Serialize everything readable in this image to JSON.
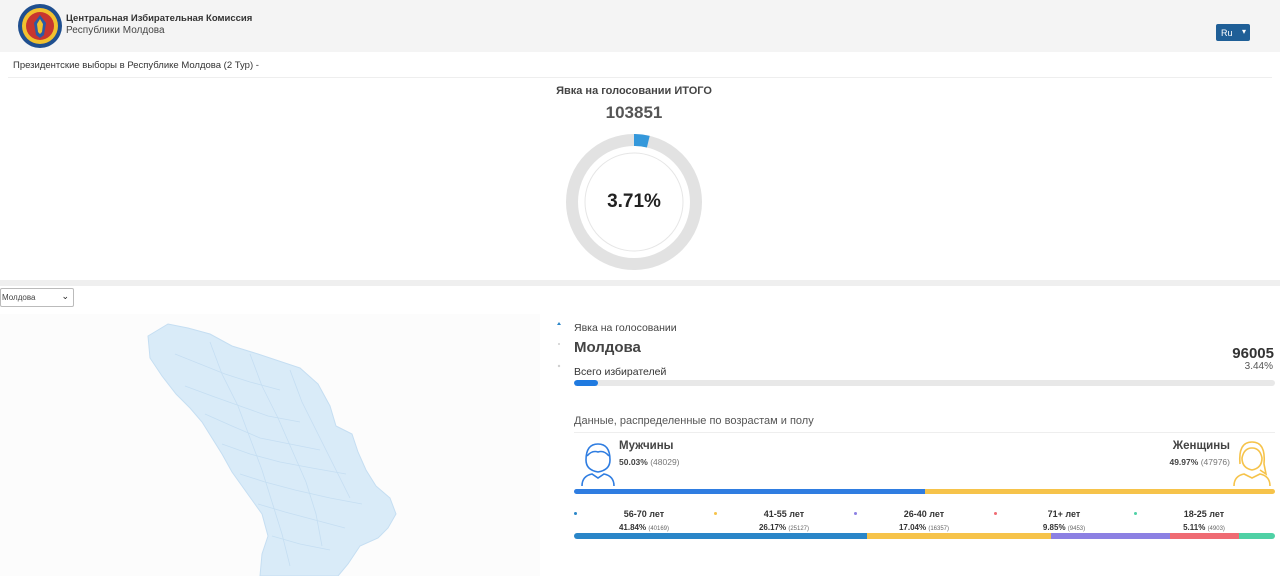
{
  "header": {
    "org_name": "Центральная Избирательная Комиссия",
    "org_sub": "Республики Молдова",
    "lang": "Ru"
  },
  "breadcrumb": "Президентские выборы в Республике Молдова (2 Тур) -",
  "turnout": {
    "title": "Явка на голосовании ИТОГО",
    "count": "103851",
    "percent_label": "3.71%",
    "percent": 3.71
  },
  "region_select": {
    "value": "Молдова"
  },
  "region": {
    "title": "Явка на голосовании",
    "name": "Молдова",
    "voters_label": "Всего избирателей",
    "count": "96005",
    "percent_label": "3.44%",
    "percent": 3.44
  },
  "demographics": {
    "title": "Данные, распределенные по возрастам и полу",
    "male": {
      "label": "Мужчины",
      "pct_label": "50.03%",
      "count_label": "(48029)",
      "pct": 50.03,
      "color": "#2f7de1"
    },
    "female": {
      "label": "Женщины",
      "pct_label": "49.97%",
      "count_label": "(47976)",
      "pct": 49.97,
      "color": "#f6c34a"
    },
    "age_groups": [
      {
        "label": "56-70 лет",
        "pct_label": "41.84%",
        "count_label": "(40169)",
        "pct": 41.84,
        "color": "#2a86c8",
        "dot": "#2a86c8"
      },
      {
        "label": "41-55 лет",
        "pct_label": "26.17%",
        "count_label": "(25127)",
        "pct": 26.17,
        "color": "#f6c34a",
        "dot": "#f6c34a"
      },
      {
        "label": "26-40 лет",
        "pct_label": "17.04%",
        "count_label": "(16357)",
        "pct": 17.04,
        "color": "#8c80e3",
        "dot": "#8c80e3"
      },
      {
        "label": "71+ лет",
        "pct_label": "9.85%",
        "count_label": "(9453)",
        "pct": 9.85,
        "color": "#ef6b73",
        "dot": "#ef6b73"
      },
      {
        "label": "18-25 лет",
        "pct_label": "5.11%",
        "count_label": "(4903)",
        "pct": 5.11,
        "color": "#4fd1a5",
        "dot": "#4fd1a5"
      }
    ]
  },
  "colors": {
    "brand": "#1f5f97",
    "donut_fill": "#3498db",
    "donut_track": "#e2e2e2",
    "map": "#d9ebf8"
  }
}
